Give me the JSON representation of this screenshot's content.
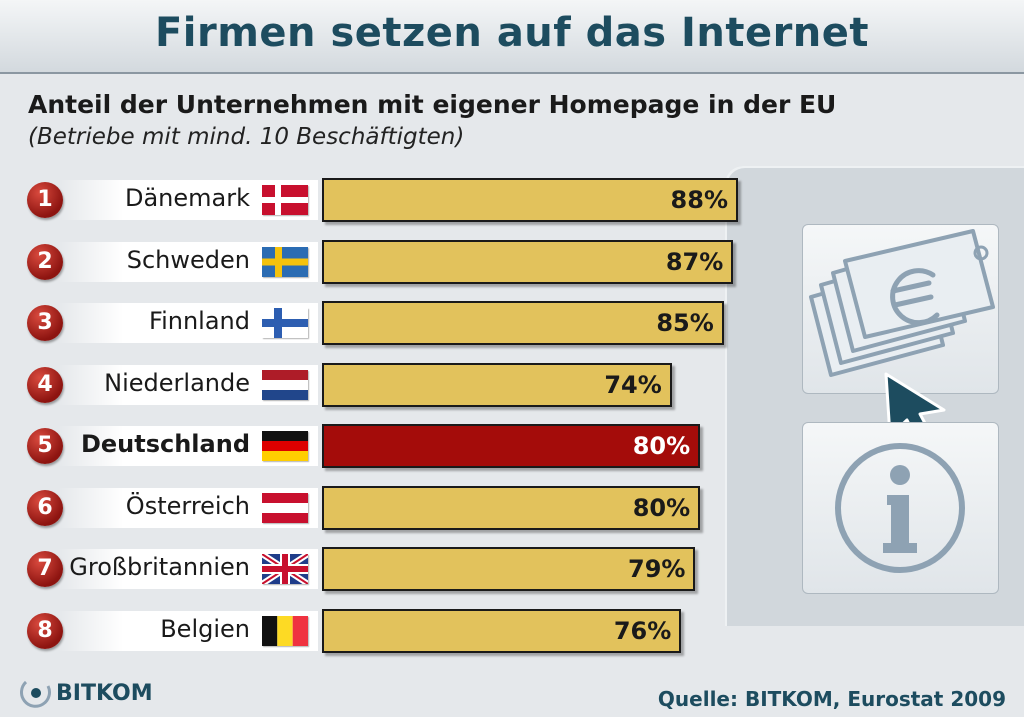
{
  "title": "Firmen setzen auf das Internet",
  "subtitle": "Anteil der Unternehmen mit eigener Homepage in der EU",
  "subtitle2": "(Betriebe mit mind. 10 Beschäftigten)",
  "source": "Quelle: BITKOM, Eurostat 2009",
  "logo": "BITKOM",
  "colors": {
    "bar": "#e2c25c",
    "highlight": "#a40c0a",
    "title": "#1d4c5f",
    "badge": "#8d1410"
  },
  "chart_data": {
    "type": "bar",
    "orientation": "horizontal",
    "title": "Firmen setzen auf das Internet",
    "subtitle": "Anteil der Unternehmen mit eigener Homepage in der EU",
    "categories": [
      "Dänemark",
      "Schweden",
      "Finnland",
      "Niederlande",
      "Deutschland",
      "Österreich",
      "Großbritannien",
      "Belgien"
    ],
    "ranks": [
      "1",
      "2",
      "3",
      "4",
      "5",
      "6",
      "7",
      "8"
    ],
    "values": [
      88,
      87,
      85,
      74,
      80,
      80,
      79,
      76
    ],
    "labels": [
      "88%",
      "87%",
      "85%",
      "74%",
      "80%",
      "80%",
      "79%",
      "76%"
    ],
    "highlight": "Deutschland",
    "flags": [
      "flag-denmark-icon",
      "flag-sweden-icon",
      "flag-finland-icon",
      "flag-netherlands-icon",
      "flag-germany-icon",
      "flag-austria-icon",
      "flag-uk-icon",
      "flag-belgium-icon"
    ],
    "xlim": [
      0,
      100
    ],
    "grid": false
  },
  "icons": [
    "money-euro-icon",
    "cursor-arrow-icon",
    "info-icon"
  ]
}
